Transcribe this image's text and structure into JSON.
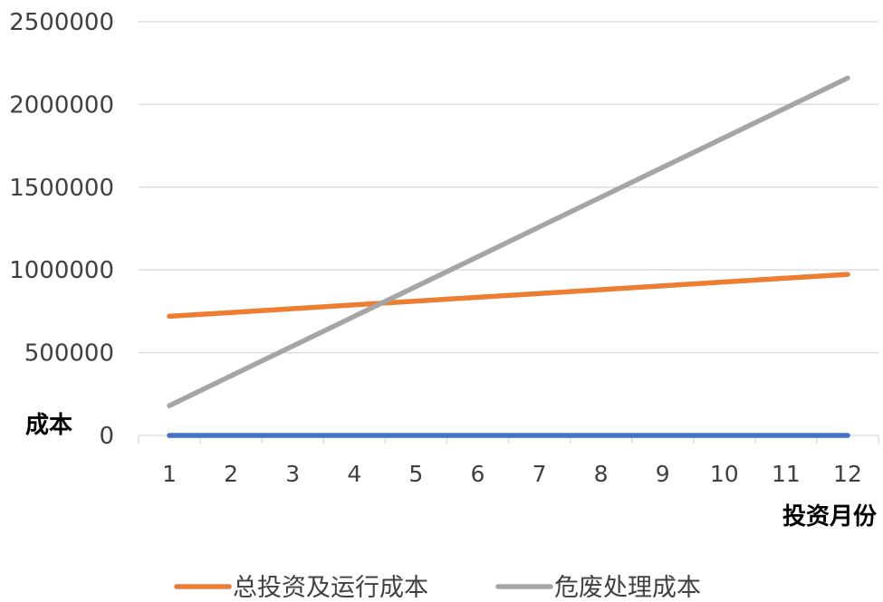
{
  "chart_data": {
    "type": "line",
    "title": "",
    "xlabel": "投资月份",
    "ylabel": "成本",
    "x": [
      1,
      2,
      3,
      4,
      5,
      6,
      7,
      8,
      9,
      10,
      11,
      12
    ],
    "ylim": [
      0,
      2500000
    ],
    "yticks": [
      0,
      500000,
      1000000,
      1500000,
      2000000,
      2500000
    ],
    "grid": true,
    "legend_position": "bottom",
    "series": [
      {
        "name": "",
        "color": "#4472c4",
        "values": [
          0,
          0,
          0,
          0,
          0,
          0,
          0,
          0,
          0,
          0,
          0,
          0
        ]
      },
      {
        "name": "总投资及运行成本",
        "color": "#ed7d31",
        "values": [
          720000,
          743000,
          766000,
          789000,
          812000,
          835000,
          858000,
          881000,
          904000,
          927000,
          950000,
          973000
        ]
      },
      {
        "name": "危废处理成本",
        "color": "#a5a5a5",
        "values": [
          180000,
          360000,
          540000,
          720000,
          900000,
          1080000,
          1260000,
          1440000,
          1620000,
          1800000,
          1980000,
          2160000
        ]
      }
    ]
  }
}
